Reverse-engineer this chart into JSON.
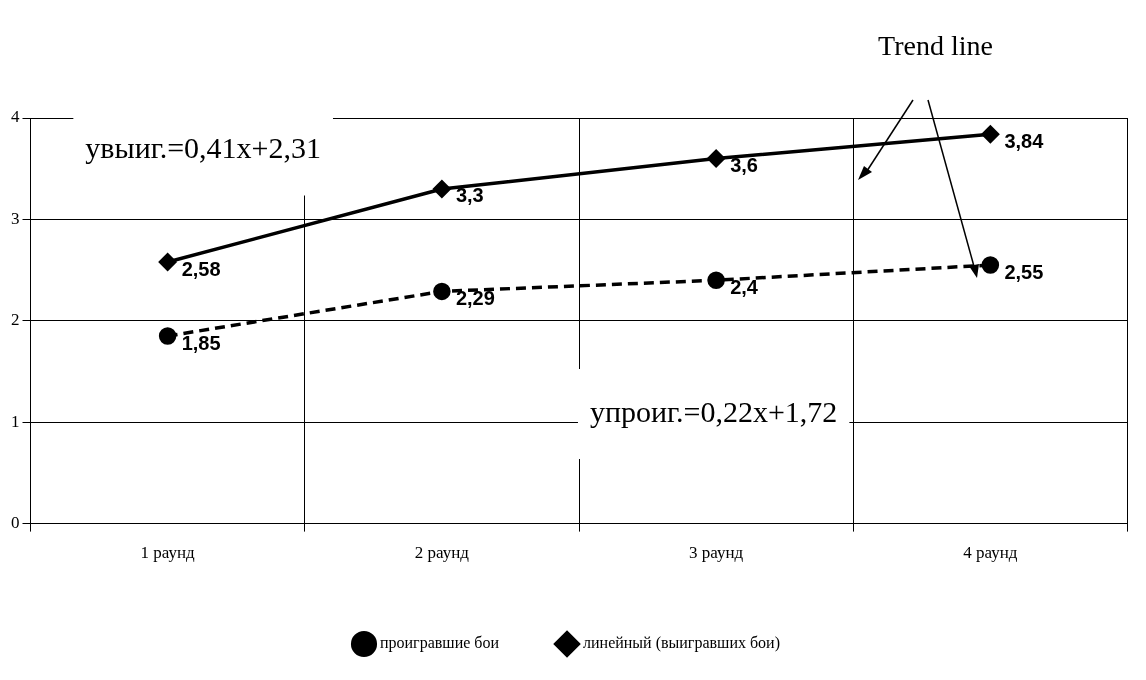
{
  "chart_data": {
    "type": "line",
    "categories": [
      "1 раунд",
      "2 раунд",
      "3 раунд",
      "4 раунд"
    ],
    "series": [
      {
        "name": "проигравшие бои",
        "color": "#000000",
        "values": [
          1.85,
          2.29,
          2.4,
          2.55
        ],
        "value_labels": [
          "1,85",
          "2,29",
          "2,4",
          "2,55"
        ],
        "marker": "circle",
        "line_style": "dashed"
      },
      {
        "name": "линейный (выигравших бои)",
        "color": "#000000",
        "values": [
          2.58,
          3.3,
          3.6,
          3.84
        ],
        "value_labels": [
          "2,58",
          "3,3",
          "3,6",
          "3,84"
        ],
        "marker": "diamond",
        "line_style": "solid"
      }
    ],
    "ylim": [
      0,
      4
    ],
    "yticks": [
      0,
      1,
      2,
      3,
      4
    ],
    "grid": true,
    "legend": "bottom",
    "annotations": [
      "Trend line",
      "yвыиг.=0,41x+2,31",
      "yпроиг.=0,22x+1,72"
    ]
  }
}
